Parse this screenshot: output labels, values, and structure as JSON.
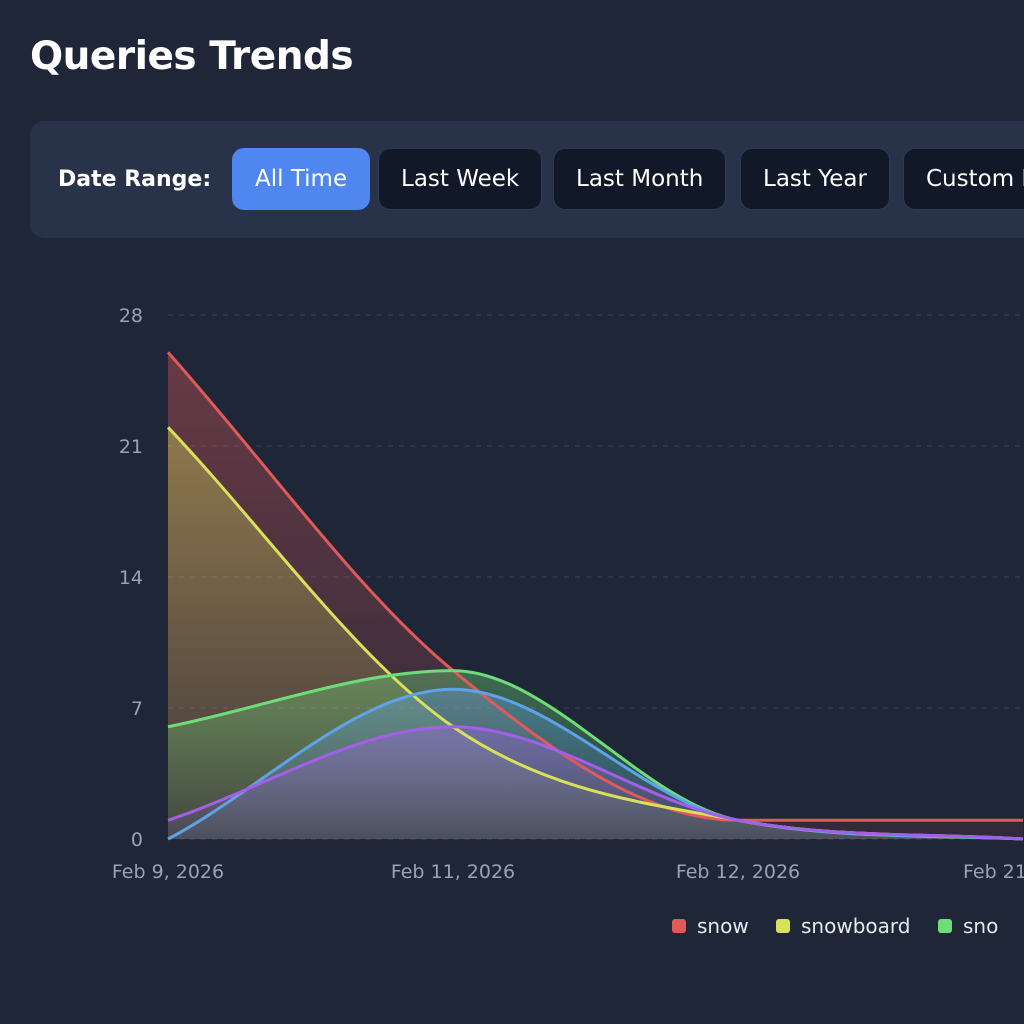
{
  "page": {
    "title": "Queries Trends"
  },
  "filters": {
    "label": "Date Range:",
    "options": [
      "All Time",
      "Last Week",
      "Last Month",
      "Last Year",
      "Custom Range"
    ],
    "selected": "All Time",
    "accent_color": "#4f86f0"
  },
  "chart_data": {
    "type": "area",
    "x": [
      "Feb 9, 2026",
      "Feb 11, 2026",
      "Feb 12, 2026",
      "Feb 21"
    ],
    "ylim": [
      0,
      28
    ],
    "yticks": [
      0,
      7,
      14,
      21,
      28
    ],
    "grid": true,
    "legend_position": "bottom-right",
    "series": [
      {
        "name": "snow",
        "color": "#e05a5a",
        "values": [
          26,
          9,
          1,
          1
        ]
      },
      {
        "name": "snowboard",
        "color": "#d9e05a",
        "values": [
          22,
          6,
          1,
          0
        ]
      },
      {
        "name": "sno",
        "color": "#6fdc7a",
        "values": [
          6,
          9,
          1,
          0
        ]
      },
      {
        "name": "",
        "color": "#5ea3ea",
        "values": [
          0,
          8,
          1,
          0
        ]
      },
      {
        "name": "",
        "color": "#a45ee8",
        "values": [
          1,
          6,
          1,
          0
        ]
      }
    ]
  }
}
